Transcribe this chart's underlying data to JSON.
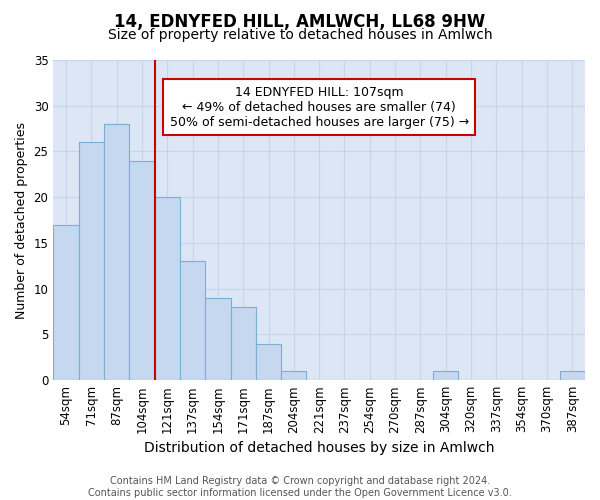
{
  "title1": "14, EDNYFED HILL, AMLWCH, LL68 9HW",
  "title2": "Size of property relative to detached houses in Amlwch",
  "xlabel": "Distribution of detached houses by size in Amlwch",
  "ylabel": "Number of detached properties",
  "categories": [
    "54sqm",
    "71sqm",
    "87sqm",
    "104sqm",
    "121sqm",
    "137sqm",
    "154sqm",
    "171sqm",
    "187sqm",
    "204sqm",
    "221sqm",
    "237sqm",
    "254sqm",
    "270sqm",
    "287sqm",
    "304sqm",
    "320sqm",
    "337sqm",
    "354sqm",
    "370sqm",
    "387sqm"
  ],
  "values": [
    17,
    26,
    28,
    24,
    20,
    13,
    9,
    8,
    4,
    1,
    0,
    0,
    0,
    0,
    0,
    1,
    0,
    0,
    0,
    0,
    1
  ],
  "bar_color": "#c5d8f0",
  "bar_edge_color": "#7aafd4",
  "vline_color": "#cc0000",
  "vline_x_index": 3.5,
  "ylim": [
    0,
    35
  ],
  "yticks": [
    0,
    5,
    10,
    15,
    20,
    25,
    30,
    35
  ],
  "grid_color": "#c8d4e8",
  "bg_color": "#dce6f5",
  "annotation_text": "14 EDNYFED HILL: 107sqm\n← 49% of detached houses are smaller (74)\n50% of semi-detached houses are larger (75) →",
  "annotation_box_color": "#ffffff",
  "annotation_box_edge": "#cc0000",
  "footer_text": "Contains HM Land Registry data © Crown copyright and database right 2024.\nContains public sector information licensed under the Open Government Licence v3.0.",
  "title1_fontsize": 12,
  "title2_fontsize": 10,
  "xlabel_fontsize": 10,
  "ylabel_fontsize": 9,
  "tick_fontsize": 8.5,
  "annotation_fontsize": 9,
  "footer_fontsize": 7
}
